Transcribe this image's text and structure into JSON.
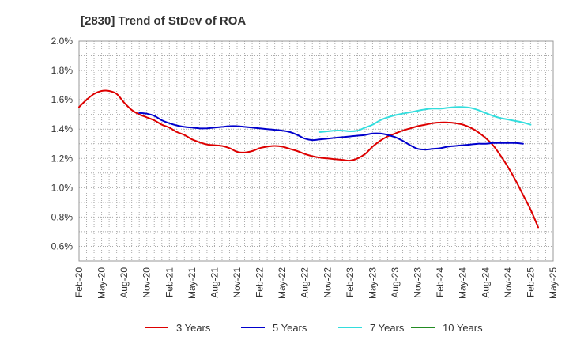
{
  "chart_data": {
    "type": "line",
    "title": "[2830]  Trend of StDev of ROA",
    "xlabel": "",
    "ylabel": "",
    "ylim": [
      0.5,
      2.0
    ],
    "grid": true,
    "legend_position": "bottom",
    "x_tick_labels": [
      "Feb-20",
      "May-20",
      "Aug-20",
      "Nov-20",
      "Feb-21",
      "May-21",
      "Aug-21",
      "Nov-21",
      "Feb-22",
      "May-22",
      "Aug-22",
      "Nov-22",
      "Feb-23",
      "May-23",
      "Aug-23",
      "Nov-23",
      "Feb-24",
      "May-24",
      "Aug-24",
      "Nov-24",
      "Feb-25",
      "May-25"
    ],
    "y_tick_labels": [
      "0.6%",
      "0.8%",
      "1.0%",
      "1.2%",
      "1.4%",
      "1.6%",
      "1.8%",
      "2.0%"
    ],
    "y_tick_values": [
      0.6,
      0.8,
      1.0,
      1.2,
      1.4,
      1.6,
      1.8,
      2.0
    ],
    "series": [
      {
        "name": "3 Years",
        "color": "#dd0000",
        "values": [
          1.55,
          1.6,
          1.64,
          1.66,
          1.66,
          1.64,
          1.58,
          1.53,
          1.5,
          1.48,
          1.46,
          1.43,
          1.41,
          1.38,
          1.36,
          1.33,
          1.31,
          1.295,
          1.29,
          1.285,
          1.27,
          1.245,
          1.24,
          1.25,
          1.27,
          1.28,
          1.285,
          1.28,
          1.265,
          1.25,
          1.23,
          1.215,
          1.205,
          1.2,
          1.195,
          1.19,
          1.185,
          1.2,
          1.23,
          1.28,
          1.32,
          1.35,
          1.37,
          1.39,
          1.405,
          1.42,
          1.43,
          1.44,
          1.445,
          1.445,
          1.44,
          1.43,
          1.41,
          1.38,
          1.34,
          1.29,
          1.22,
          1.14,
          1.05,
          0.95,
          0.85,
          0.73
        ]
      },
      {
        "name": "5 Years",
        "color": "#0000cc",
        "values": [
          null,
          null,
          null,
          null,
          null,
          null,
          null,
          null,
          1.51,
          1.505,
          1.49,
          1.46,
          1.44,
          1.425,
          1.415,
          1.41,
          1.405,
          1.405,
          1.41,
          1.415,
          1.42,
          1.42,
          1.415,
          1.41,
          1.405,
          1.4,
          1.395,
          1.39,
          1.38,
          1.36,
          1.335,
          1.325,
          1.33,
          1.335,
          1.34,
          1.345,
          1.35,
          1.355,
          1.36,
          1.37,
          1.37,
          1.36,
          1.345,
          1.32,
          1.29,
          1.265,
          1.26,
          1.265,
          1.27,
          1.28,
          1.285,
          1.29,
          1.295,
          1.3,
          1.3,
          1.305,
          1.305,
          1.305,
          1.305,
          1.3
        ]
      },
      {
        "name": "7 Years",
        "color": "#33dddd",
        "values": [
          null,
          null,
          null,
          null,
          null,
          null,
          null,
          null,
          null,
          null,
          null,
          null,
          null,
          null,
          null,
          null,
          null,
          null,
          null,
          null,
          null,
          null,
          null,
          null,
          null,
          null,
          null,
          null,
          null,
          null,
          null,
          null,
          1.38,
          1.385,
          1.39,
          1.39,
          1.385,
          1.39,
          1.41,
          1.43,
          1.46,
          1.48,
          1.495,
          1.505,
          1.515,
          1.525,
          1.535,
          1.54,
          1.54,
          1.545,
          1.55,
          1.55,
          1.545,
          1.53,
          1.51,
          1.49,
          1.475,
          1.465,
          1.455,
          1.445,
          1.43
        ]
      },
      {
        "name": "10 Years",
        "color": "#228B22",
        "values": []
      }
    ]
  }
}
